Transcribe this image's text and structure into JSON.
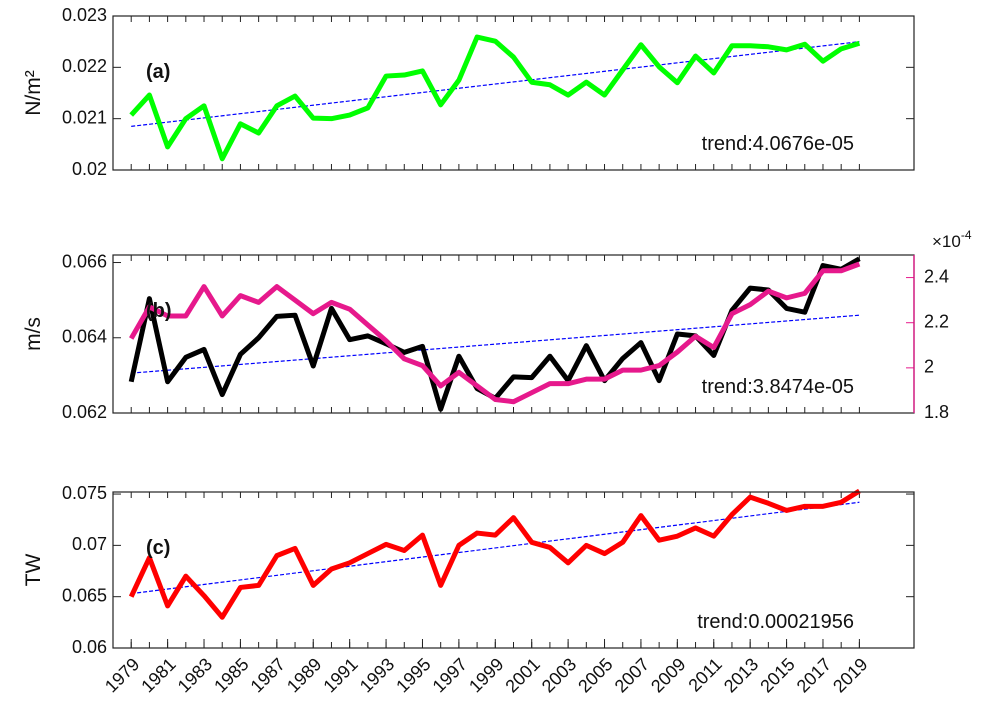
{
  "chart_data": [
    {
      "type": "line",
      "ylabel": "N/m²",
      "panel_label": "(a)",
      "annotation": "trend:4.0676e-05",
      "xlim": [
        1978,
        2022
      ],
      "ylim": [
        0.02,
        0.023
      ],
      "yticks": [
        0.02,
        0.021,
        0.022,
        0.023
      ],
      "x": [
        1979,
        1980,
        1981,
        1982,
        1983,
        1984,
        1985,
        1986,
        1987,
        1988,
        1989,
        1990,
        1991,
        1992,
        1993,
        1994,
        1995,
        1996,
        1997,
        1998,
        1999,
        2000,
        2001,
        2002,
        2003,
        2004,
        2005,
        2006,
        2007,
        2008,
        2009,
        2010,
        2011,
        2012,
        2013,
        2014,
        2015,
        2016,
        2017,
        2018,
        2019
      ],
      "series": [
        {
          "color": "#00ff00",
          "values": [
            0.02107,
            0.02146,
            0.02045,
            0.021,
            0.02125,
            0.02022,
            0.0209,
            0.02072,
            0.02125,
            0.02144,
            0.02101,
            0.021,
            0.02107,
            0.02121,
            0.02183,
            0.02185,
            0.02193,
            0.02127,
            0.02175,
            0.02259,
            0.02251,
            0.0222,
            0.02171,
            0.02166,
            0.02146,
            0.02171,
            0.02146,
            0.02195,
            0.02244,
            0.02201,
            0.0217,
            0.02222,
            0.02189,
            0.02242,
            0.02242,
            0.0224,
            0.02234,
            0.02245,
            0.02212,
            0.02236,
            0.02247
          ]
        }
      ],
      "trend": {
        "x": [
          1979,
          2019
        ],
        "values": [
          0.02085,
          0.0225
        ],
        "color": "#0000ff"
      }
    },
    {
      "type": "line",
      "ylabel": "m/s",
      "panel_label": "(b)",
      "annotation": "trend:3.8474e-05",
      "xlim": [
        1978,
        2022
      ],
      "ylim": [
        0.062,
        0.0662
      ],
      "yticks": [
        0.062,
        0.064,
        0.066
      ],
      "y2lim": [
        1.8,
        2.5
      ],
      "y2ticks": [
        1.8,
        2,
        2.2,
        2.4
      ],
      "y2_multiplier": "×10",
      "y2_exponent": "-4",
      "y2_color": "#e6198c",
      "x": [
        1979,
        1980,
        1981,
        1982,
        1983,
        1984,
        1985,
        1986,
        1987,
        1988,
        1989,
        1990,
        1991,
        1992,
        1993,
        1994,
        1995,
        1996,
        1997,
        1998,
        1999,
        2000,
        2001,
        2002,
        2003,
        2004,
        2005,
        2006,
        2007,
        2008,
        2009,
        2010,
        2011,
        2012,
        2013,
        2014,
        2015,
        2016,
        2017,
        2018,
        2019
      ],
      "series": [
        {
          "color": "#000000",
          "values": [
            0.06283,
            0.06504,
            0.06283,
            0.06348,
            0.06369,
            0.06249,
            0.06356,
            0.064,
            0.06457,
            0.0646,
            0.06325,
            0.06478,
            0.06395,
            0.06405,
            0.06384,
            0.06361,
            0.06377,
            0.0621,
            0.06351,
            0.06265,
            0.06239,
            0.06296,
            0.06294,
            0.06351,
            0.06286,
            0.06379,
            0.06286,
            0.06345,
            0.06387,
            0.06286,
            0.0641,
            0.06405,
            0.06353,
            0.06473,
            0.06532,
            0.06527,
            0.06478,
            0.06468,
            0.06592,
            0.06582,
            0.0661
          ]
        },
        {
          "color": "#e6198c",
          "axis": "y2",
          "values": [
            2.13,
            2.27,
            2.23,
            2.23,
            2.36,
            2.23,
            2.32,
            2.29,
            2.36,
            2.3,
            2.24,
            2.29,
            2.26,
            2.19,
            2.12,
            2.04,
            2.01,
            1.92,
            1.98,
            1.92,
            1.86,
            1.85,
            1.89,
            1.93,
            1.93,
            1.95,
            1.95,
            1.99,
            1.99,
            2.01,
            2.07,
            2.14,
            2.09,
            2.24,
            2.28,
            2.34,
            2.31,
            2.33,
            2.43,
            2.43,
            2.46
          ]
        }
      ],
      "trend": {
        "x": [
          1979,
          2019
        ],
        "values": [
          0.06306,
          0.0646
        ],
        "color": "#0000ff"
      }
    },
    {
      "type": "line",
      "ylabel": "TW",
      "panel_label": "(c)",
      "annotation": "trend:0.00021956",
      "xlim": [
        1978,
        2022
      ],
      "ylim": [
        0.06,
        0.0752
      ],
      "yticks": [
        0.06,
        0.065,
        0.07,
        0.075
      ],
      "xticks": [
        1979,
        1981,
        1983,
        1985,
        1987,
        1989,
        1991,
        1993,
        1995,
        1997,
        1999,
        2001,
        2003,
        2005,
        2007,
        2009,
        2011,
        2013,
        2015,
        2017,
        2019
      ],
      "x": [
        1979,
        1980,
        1981,
        1982,
        1983,
        1984,
        1985,
        1986,
        1987,
        1988,
        1989,
        1990,
        1991,
        1992,
        1993,
        1994,
        1995,
        1996,
        1997,
        1998,
        1999,
        2000,
        2001,
        2002,
        2003,
        2004,
        2005,
        2006,
        2007,
        2008,
        2009,
        2010,
        2011,
        2012,
        2013,
        2014,
        2015,
        2016,
        2017,
        2018,
        2019
      ],
      "series": [
        {
          "color": "#ff0000",
          "values": [
            0.065,
            0.0688,
            0.0641,
            0.067,
            0.0651,
            0.063,
            0.0659,
            0.0661,
            0.069,
            0.0697,
            0.0661,
            0.0677,
            0.0683,
            0.0692,
            0.0701,
            0.0695,
            0.071,
            0.0661,
            0.07,
            0.0712,
            0.071,
            0.0727,
            0.0703,
            0.0698,
            0.0683,
            0.07,
            0.0692,
            0.0703,
            0.0729,
            0.0705,
            0.0709,
            0.0717,
            0.0709,
            0.073,
            0.0747,
            0.0741,
            0.0734,
            0.0738,
            0.0738,
            0.0742,
            0.0753
          ]
        }
      ],
      "trend": {
        "x": [
          1979,
          2019
        ],
        "values": [
          0.0653,
          0.0742
        ],
        "color": "#0000ff"
      }
    }
  ]
}
